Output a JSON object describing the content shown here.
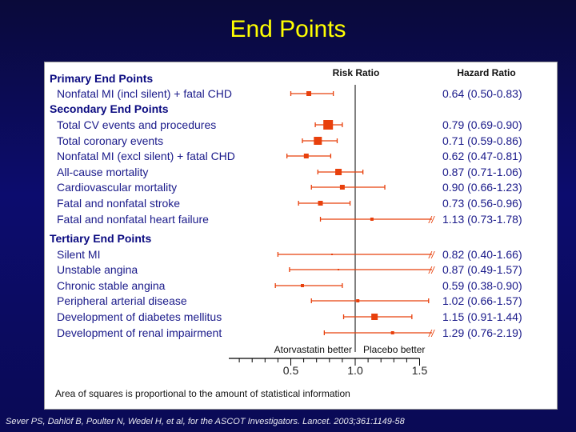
{
  "title": "End Points",
  "citation": "Sever PS, Dahlöf B, Poulter N, Wedel H, et al, for the ASCOT Investigators. Lancet. 2003;361:1149-58",
  "chart_data": {
    "type": "forest",
    "risk_ratio_header": "Risk Ratio",
    "hazard_ratio_header": "Hazard Ratio",
    "xlim": [
      0.0,
      1.5
    ],
    "ticks_major": [
      0.5,
      1.0,
      1.5
    ],
    "tick_labels": [
      "0.5",
      "1.0",
      "1.5"
    ],
    "ticks_minor_step": 0.1,
    "reference_line": 1.0,
    "left_label": "Atorvastatin better",
    "right_label": "Placebo better",
    "footnote": "Area of squares is proportional to the amount of statistical information",
    "truncation_marker": "//",
    "groups": [
      {
        "name": "Primary End Points",
        "rows": [
          {
            "label": "Nonfatal MI (incl silent) + fatal CHD",
            "hr": 0.64,
            "lo": 0.5,
            "hi": 0.83,
            "ci_text": "0.64 (0.50-0.83)",
            "size": 3,
            "truncated": false
          }
        ]
      },
      {
        "name": "Secondary End Points",
        "rows": [
          {
            "label": "Total CV events and procedures",
            "hr": 0.79,
            "lo": 0.69,
            "hi": 0.9,
            "ci_text": "0.79 (0.69-0.90)",
            "size": 6,
            "truncated": false
          },
          {
            "label": "Total coronary events",
            "hr": 0.71,
            "lo": 0.59,
            "hi": 0.86,
            "ci_text": "0.71 (0.59-0.86)",
            "size": 5,
            "truncated": false
          },
          {
            "label": "Nonfatal MI (excl silent) + fatal CHD",
            "hr": 0.62,
            "lo": 0.47,
            "hi": 0.81,
            "ci_text": "0.62 (0.47-0.81)",
            "size": 3,
            "truncated": false
          },
          {
            "label": "All-cause mortality",
            "hr": 0.87,
            "lo": 0.71,
            "hi": 1.06,
            "ci_text": "0.87 (0.71-1.06)",
            "size": 4,
            "truncated": false
          },
          {
            "label": "Cardiovascular mortality",
            "hr": 0.9,
            "lo": 0.66,
            "hi": 1.23,
            "ci_text": "0.90 (0.66-1.23)",
            "size": 3,
            "truncated": false
          },
          {
            "label": "Fatal and nonfatal  stroke",
            "hr": 0.73,
            "lo": 0.56,
            "hi": 0.96,
            "ci_text": "0.73 (0.56-0.96)",
            "size": 3,
            "truncated": false
          },
          {
            "label": "Fatal and nonfatal heart failure",
            "hr": 1.13,
            "lo": 0.73,
            "hi": 1.78,
            "ci_text": "1.13 (0.73-1.78)",
            "size": 2,
            "truncated": true
          }
        ]
      },
      {
        "name": "Tertiary End Points",
        "rows": [
          {
            "label": "Silent MI",
            "hr": 0.82,
            "lo": 0.4,
            "hi": 1.66,
            "ci_text": "0.82 (0.40-1.66)",
            "size": 1,
            "truncated": true
          },
          {
            "label": "Unstable angina",
            "hr": 0.87,
            "lo": 0.49,
            "hi": 1.57,
            "ci_text": "0.87 (0.49-1.57)",
            "size": 1,
            "truncated": true
          },
          {
            "label": "Chronic stable angina",
            "hr": 0.59,
            "lo": 0.38,
            "hi": 0.9,
            "ci_text": "0.59 (0.38-0.90)",
            "size": 2,
            "truncated": false
          },
          {
            "label": "Peripheral arterial disease",
            "hr": 1.02,
            "lo": 0.66,
            "hi": 1.57,
            "ci_text": "1.02 (0.66-1.57)",
            "size": 2,
            "truncated": false
          },
          {
            "label": "Development of diabetes mellitus",
            "hr": 1.15,
            "lo": 0.91,
            "hi": 1.44,
            "ci_text": "1.15 (0.91-1.44)",
            "size": 4,
            "truncated": false
          },
          {
            "label": "Development of renal impairment",
            "hr": 1.29,
            "lo": 0.76,
            "hi": 2.19,
            "ci_text": "1.29 (0.76-2.19)",
            "size": 2,
            "truncated": true
          }
        ]
      }
    ]
  }
}
